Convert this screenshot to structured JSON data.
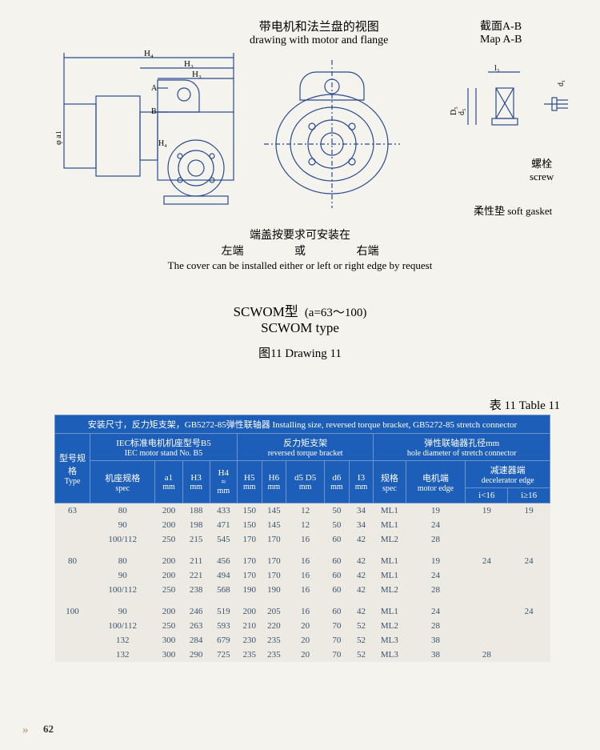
{
  "header": {
    "main_cn": "带电机和法兰盘的视图",
    "main_en": "drawing with motor and flange",
    "map_cn": "截面A-B",
    "map_en": "Map A-B"
  },
  "diagram": {
    "labels": {
      "H4": "H₄",
      "H3_top": "H₃",
      "H3_bot": "H₃",
      "A": "A",
      "B": "B",
      "phi_a1": "φ a1",
      "H4_inner": "H₄",
      "l3": "l₃",
      "d5": "d₅",
      "D5": "D₅",
      "d1_right": "d₁"
    },
    "screw_cn": "螺栓",
    "screw_en": "screw",
    "gasket": "柔性垫 soft gasket",
    "cover_cn": "端盖按要求可安装在",
    "left_cn": "左端",
    "or_cn": "或",
    "right_cn": "右端",
    "cover_en": "The cover can be installed either or left or right edge by request"
  },
  "model": {
    "cn": "SCWOM型",
    "en": "SCWOM type",
    "range": "(a=63～100)",
    "drawing": "图11  Drawing 11"
  },
  "table": {
    "title": "表 11   Table 11",
    "top_header": "安装尺寸，反力矩支架，GB5272-85弹性联轴器  Installing size, reversed torque bracket, GB5272-85 stretch connector",
    "group_headers": {
      "type_cn": "型号规格",
      "type_en": "Type",
      "iec_cn": "IEC标准电机机座型号B5",
      "iec_en": "IEC motor stand No. B5",
      "torque_cn": "反力矩支架",
      "torque_en": "reversed torque bracket",
      "hole_cn": "弹性联轴器孔径mm",
      "hole_en": "hole diameter of stretch connector"
    },
    "col_headers": {
      "spec_cn": "机座规格",
      "spec_en": "spec",
      "a1": "a1",
      "H3": "H3",
      "H4": "H4",
      "H4_approx": "≈",
      "H5": "H5",
      "H6": "H6",
      "d5D5": "d5 D5",
      "d6": "d6",
      "l3": "I3",
      "spec2_cn": "规格",
      "spec2_en": "spec",
      "motor_cn": "电机端",
      "motor_en": "motor edge",
      "decel_cn": "减速器端",
      "decel_en": "decelerator edge",
      "mm": "mm",
      "i_lt": "i<16",
      "i_ge": "i≥16"
    },
    "rows": [
      {
        "type": "63",
        "spec": "80",
        "a1": "200",
        "H3": "188",
        "H4": "433",
        "H5": "150",
        "H6": "145",
        "d5": "12",
        "d6": "50",
        "l3": "34",
        "sp": "ML1",
        "me": "19",
        "dlt": "19",
        "dge": "19"
      },
      {
        "type": "",
        "spec": "90",
        "a1": "200",
        "H3": "198",
        "H4": "471",
        "H5": "150",
        "H6": "145",
        "d5": "12",
        "d6": "50",
        "l3": "34",
        "sp": "ML1",
        "me": "24",
        "dlt": "",
        "dge": ""
      },
      {
        "type": "",
        "spec": "100/112",
        "a1": "250",
        "H3": "215",
        "H4": "545",
        "H5": "170",
        "H6": "170",
        "d5": "16",
        "d6": "60",
        "l3": "42",
        "sp": "ML2",
        "me": "28",
        "dlt": "",
        "dge": ""
      },
      {
        "type": "80",
        "spec": "80",
        "a1": "200",
        "H3": "211",
        "H4": "456",
        "H5": "170",
        "H6": "170",
        "d5": "16",
        "d6": "60",
        "l3": "42",
        "sp": "ML1",
        "me": "19",
        "dlt": "24",
        "dge": "24",
        "gap": true
      },
      {
        "type": "",
        "spec": "90",
        "a1": "200",
        "H3": "221",
        "H4": "494",
        "H5": "170",
        "H6": "170",
        "d5": "16",
        "d6": "60",
        "l3": "42",
        "sp": "ML1",
        "me": "24",
        "dlt": "",
        "dge": ""
      },
      {
        "type": "",
        "spec": "100/112",
        "a1": "250",
        "H3": "238",
        "H4": "568",
        "H5": "190",
        "H6": "190",
        "d5": "16",
        "d6": "60",
        "l3": "42",
        "sp": "ML2",
        "me": "28",
        "dlt": "",
        "dge": ""
      },
      {
        "type": "100",
        "spec": "90",
        "a1": "200",
        "H3": "246",
        "H4": "519",
        "H5": "200",
        "H6": "205",
        "d5": "16",
        "d6": "60",
        "l3": "42",
        "sp": "ML1",
        "me": "24",
        "dlt": "",
        "dge": "24",
        "gap": true
      },
      {
        "type": "",
        "spec": "100/112",
        "a1": "250",
        "H3": "263",
        "H4": "593",
        "H5": "210",
        "H6": "220",
        "d5": "20",
        "d6": "70",
        "l3": "52",
        "sp": "ML2",
        "me": "28",
        "dlt": "",
        "dge": ""
      },
      {
        "type": "",
        "spec": "132",
        "a1": "300",
        "H3": "284",
        "H4": "679",
        "H5": "230",
        "H6": "235",
        "d5": "20",
        "d6": "70",
        "l3": "52",
        "sp": "ML3",
        "me": "38",
        "dlt": "",
        "dge": ""
      },
      {
        "type": "",
        "spec": "132",
        "a1": "300",
        "H3": "290",
        "H4": "725",
        "H5": "235",
        "H6": "235",
        "d5": "20",
        "d6": "70",
        "l3": "52",
        "sp": "ML3",
        "me": "38",
        "dlt": "28",
        "dge": ""
      }
    ]
  },
  "page": {
    "number": "62",
    "chevron": "»"
  },
  "colors": {
    "header_bg": "#1d5eb8",
    "header_text": "#ffffff",
    "cell_bg": "#eceae2",
    "cell_text": "#3a536f",
    "page_bg": "#f5f3ed",
    "stroke": "#2a4a8f"
  }
}
